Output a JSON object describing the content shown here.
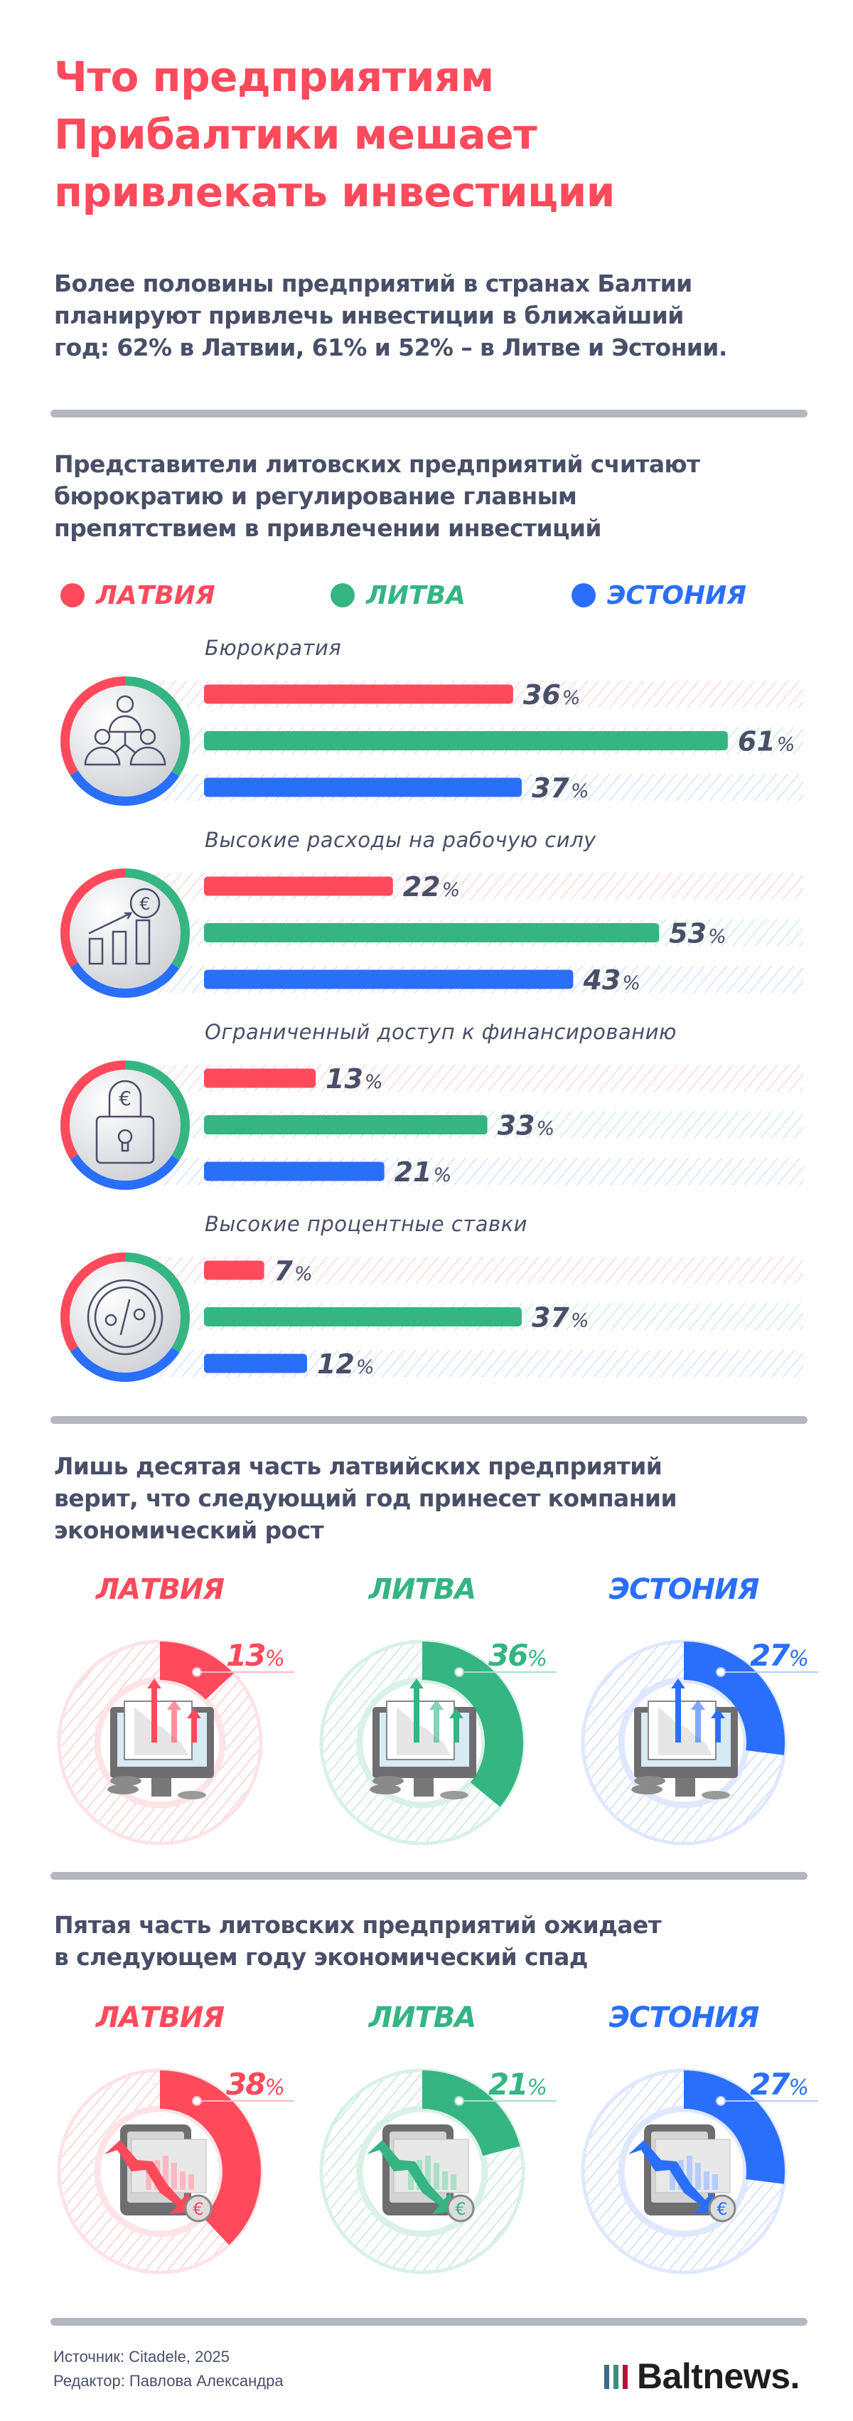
{
  "header": {
    "title_lines": [
      "Что предприятиям",
      "Прибалтики мешает",
      "привлекать инвестиции"
    ],
    "intro_lines": [
      "Более половины предприятий в странах Балтии",
      "планируют привлечь инвестиции в ближайший",
      "год: 62% в Латвии, 61% и 52% – в Литве и Эстонии."
    ]
  },
  "colors": {
    "latvia": "#ff4a5c",
    "lithuania": "#34b582",
    "estonia": "#2a6ffc",
    "text": "#4a4f68",
    "divider": "#b4b7c0"
  },
  "percent_sign": "%",
  "obstacles": {
    "heading_lines": [
      "Представители литовских предприятий считают",
      "бюрократию и регулирование главным",
      "препятствием в привлечении инвестиций"
    ],
    "legend": [
      {
        "label": "ЛАТВИЯ",
        "color": "#ff4a5c"
      },
      {
        "label": "ЛИТВА",
        "color": "#34b582"
      },
      {
        "label": "ЭСТОНИЯ",
        "color": "#2a6ffc"
      }
    ],
    "chart_data": {
      "type": "bar",
      "orientation": "horizontal",
      "unit": "%",
      "series_names": [
        "ЛАТВИЯ",
        "ЛИТВА",
        "ЭСТОНИЯ"
      ],
      "categories": [
        {
          "label": "Бюрократия",
          "icon": "people-hierarchy-icon",
          "values": [
            36,
            61,
            37
          ]
        },
        {
          "label": "Высокие расходы на рабочую силу",
          "icon": "euro-growth-chart-icon",
          "values": [
            22,
            53,
            43
          ]
        },
        {
          "label": "Ограниченный доступ к финансированию",
          "icon": "euro-padlock-icon",
          "values": [
            13,
            33,
            21
          ]
        },
        {
          "label": "Высокие процентные ставки",
          "icon": "percent-coin-icon",
          "values": [
            7,
            37,
            12
          ]
        }
      ]
    }
  },
  "growth": {
    "heading_lines": [
      "Лишь десятая часть латвийских предприятий",
      "верит, что следующий год принесет компании",
      "экономический рост"
    ],
    "chart_data": {
      "type": "pie",
      "unit": "%",
      "categories": [
        "ЛАТВИЯ",
        "ЛИТВА",
        "ЭСТОНИЯ"
      ],
      "values": [
        13,
        36,
        27
      ],
      "icon": "monitor-growth-icon"
    }
  },
  "decline": {
    "heading_lines": [
      "Пятая часть литовских предприятий ожидает",
      "в следующем году экономический спад"
    ],
    "chart_data": {
      "type": "pie",
      "unit": "%",
      "categories": [
        "ЛАТВИЯ",
        "ЛИТВА",
        "ЭСТОНИЯ"
      ],
      "values": [
        38,
        21,
        27
      ],
      "icon": "phone-decline-icon"
    }
  },
  "footer": {
    "source": "Источник: Citadele, 2025",
    "editor": "Редактор: Павлова Александра",
    "logo": "Baltnews."
  }
}
